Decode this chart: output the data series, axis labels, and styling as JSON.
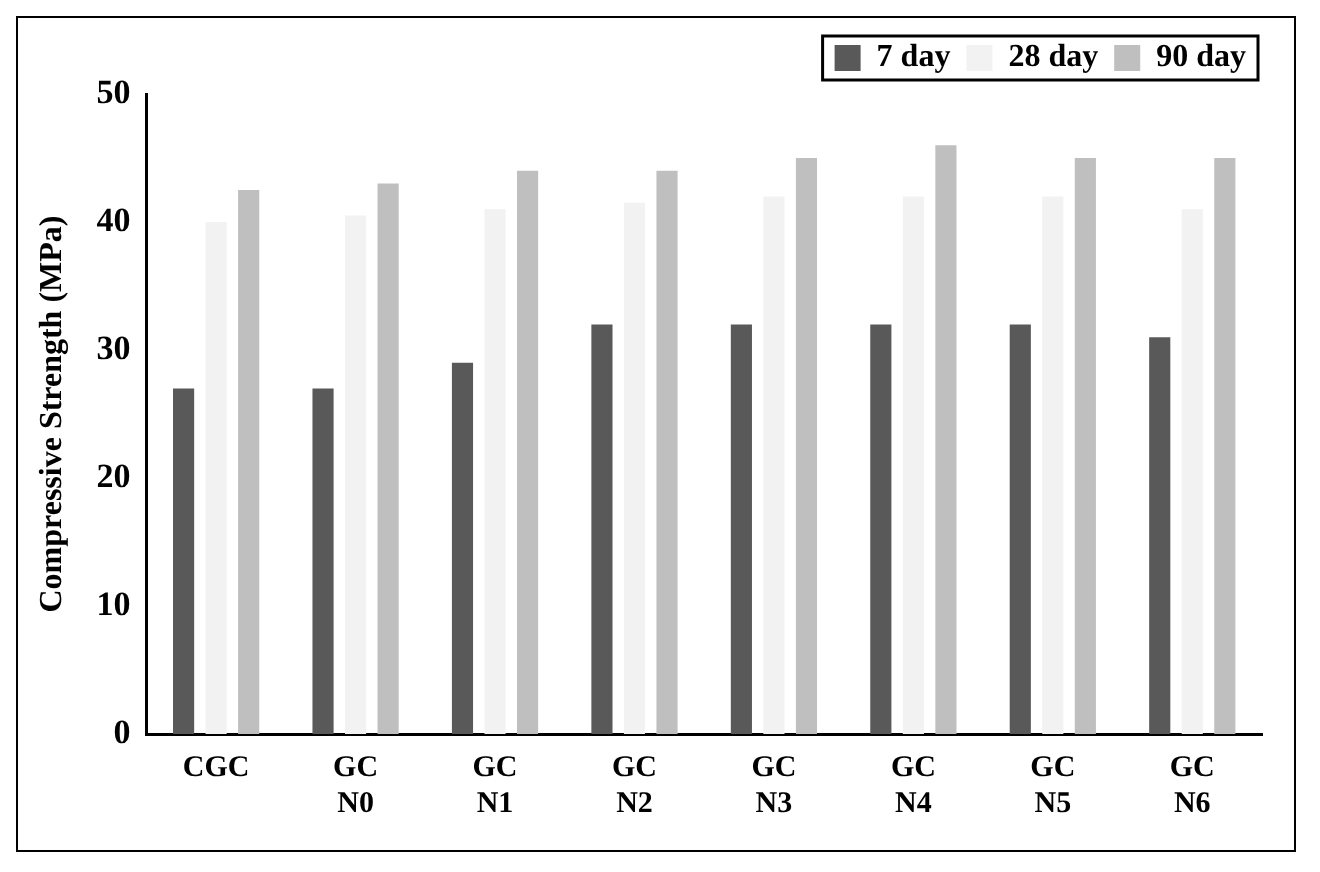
{
  "chart_data": {
    "type": "bar",
    "ylabel": "Compressive Strength (MPa)",
    "categories": [
      "CGC",
      "GC N0",
      "GC N1",
      "GC N2",
      "GC N3",
      "GC N4",
      "GC N5",
      "GC N6"
    ],
    "series": [
      {
        "name": "7 day",
        "color": "#595959",
        "values": [
          27,
          27,
          29,
          32,
          32,
          32,
          32,
          31
        ]
      },
      {
        "name": "28 day",
        "color": "#f2f2f2",
        "values": [
          40,
          40.5,
          41,
          41.5,
          42,
          42,
          42,
          41
        ]
      },
      {
        "name": "90 day",
        "color": "#bfbfbf",
        "values": [
          42.5,
          43,
          44,
          44,
          45,
          46,
          45,
          45
        ]
      }
    ],
    "ylim": [
      0,
      50
    ],
    "yticks": [
      0,
      10,
      20,
      30,
      40,
      50
    ],
    "grid": false,
    "legend": "top right"
  }
}
